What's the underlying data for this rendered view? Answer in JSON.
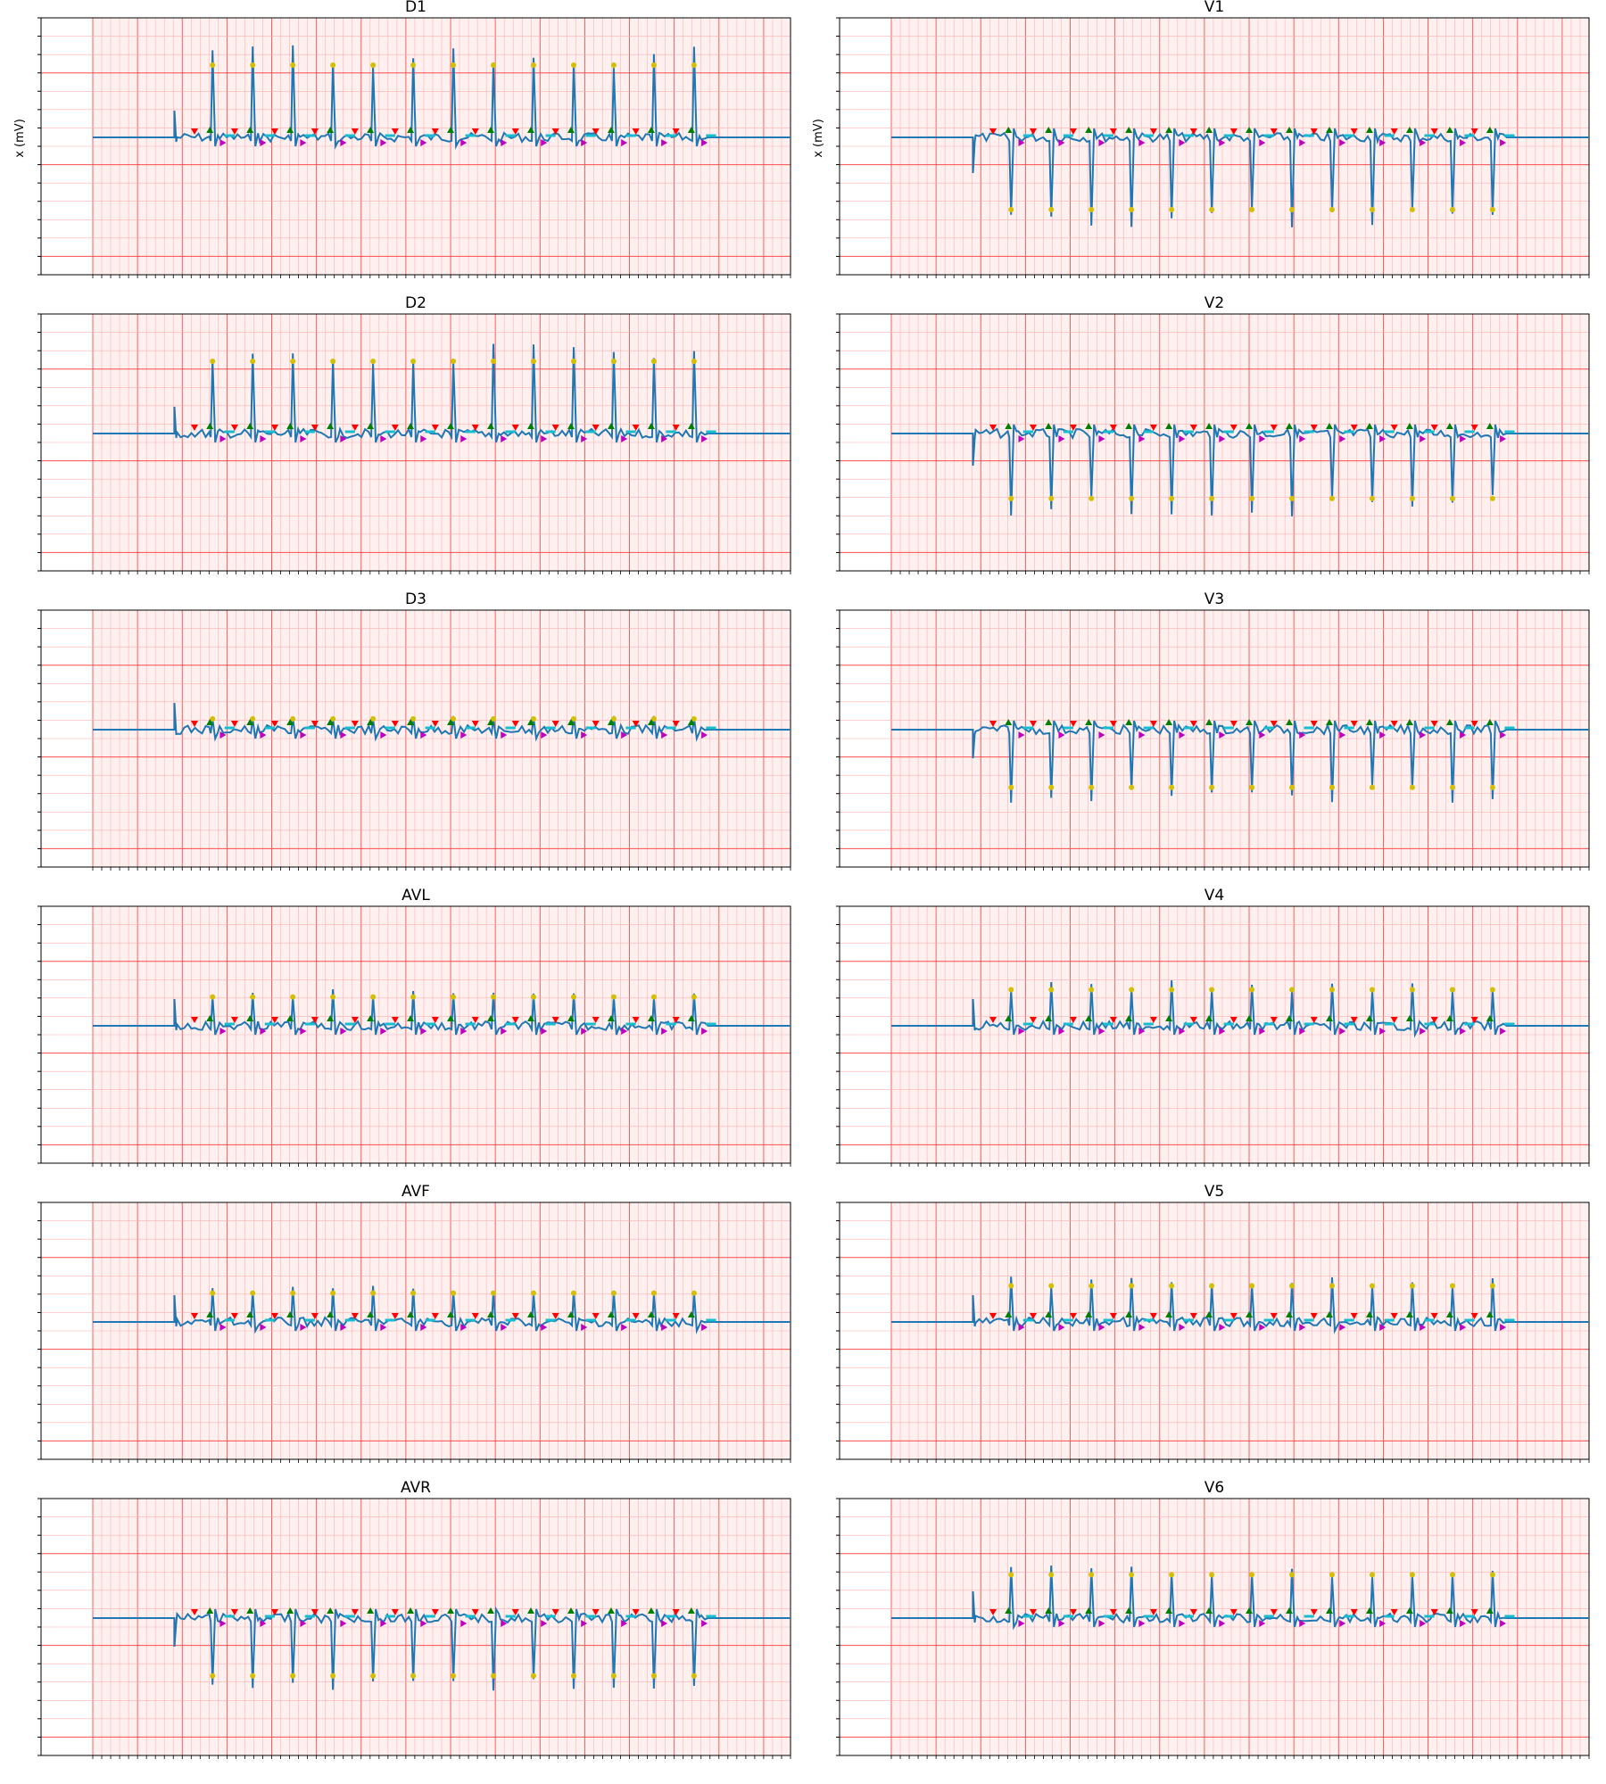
{
  "figure": {
    "ylabel": "x (mV)"
  },
  "chart_data": [
    {
      "type": "line",
      "title": "D1",
      "column": "left",
      "row": 0,
      "ylabel": "x (mV)",
      "series": [
        {
          "amplitude": 1.0,
          "polarity": "positive",
          "color": "#1f77b4"
        }
      ]
    },
    {
      "type": "line",
      "title": "V1",
      "column": "right",
      "row": 0,
      "ylabel": "x (mV)",
      "series": [
        {
          "amplitude": -1.0,
          "polarity": "negative",
          "color": "#1f77b4"
        }
      ]
    },
    {
      "type": "line",
      "title": "D2",
      "column": "left",
      "row": 1,
      "ylabel": "",
      "series": [
        {
          "amplitude": 1.0,
          "polarity": "positive",
          "color": "#1f77b4"
        }
      ]
    },
    {
      "type": "line",
      "title": "V2",
      "column": "right",
      "row": 1,
      "ylabel": "",
      "series": [
        {
          "amplitude": -0.9,
          "polarity": "negative",
          "color": "#1f77b4"
        }
      ]
    },
    {
      "type": "line",
      "title": "D3",
      "column": "left",
      "row": 2,
      "ylabel": "",
      "series": [
        {
          "amplitude": 0.15,
          "polarity": "small",
          "color": "#1f77b4"
        }
      ]
    },
    {
      "type": "line",
      "title": "V3",
      "column": "right",
      "row": 2,
      "ylabel": "",
      "series": [
        {
          "amplitude": -0.8,
          "polarity": "negative",
          "color": "#1f77b4"
        }
      ]
    },
    {
      "type": "line",
      "title": "AVL",
      "column": "left",
      "row": 3,
      "ylabel": "",
      "series": [
        {
          "amplitude": 0.4,
          "polarity": "positive",
          "color": "#1f77b4"
        }
      ]
    },
    {
      "type": "line",
      "title": "V4",
      "column": "right",
      "row": 3,
      "ylabel": "",
      "series": [
        {
          "amplitude": 0.5,
          "polarity": "biphasic",
          "color": "#1f77b4"
        }
      ]
    },
    {
      "type": "line",
      "title": "AVF",
      "column": "left",
      "row": 4,
      "ylabel": "",
      "series": [
        {
          "amplitude": 0.4,
          "polarity": "positive",
          "color": "#1f77b4"
        }
      ]
    },
    {
      "type": "line",
      "title": "V5",
      "column": "right",
      "row": 4,
      "ylabel": "",
      "series": [
        {
          "amplitude": 0.5,
          "polarity": "positive",
          "color": "#1f77b4"
        }
      ]
    },
    {
      "type": "line",
      "title": "AVR",
      "column": "left",
      "row": 5,
      "ylabel": "",
      "series": [
        {
          "amplitude": -0.8,
          "polarity": "negative",
          "color": "#1f77b4"
        }
      ]
    },
    {
      "type": "line",
      "title": "V6",
      "column": "right",
      "row": 5,
      "ylabel": "",
      "series": [
        {
          "amplitude": 0.6,
          "polarity": "positive",
          "color": "#1f77b4"
        }
      ]
    }
  ],
  "marker_colors": {
    "red": "#ff0000",
    "green": "#008000",
    "yellow": "#d4c000",
    "magenta": "#c000c0",
    "cyan": "#17becf",
    "trace": "#1f77b4",
    "grid_major": "#ff4d4d",
    "grid_minor": "#ffb0b0",
    "grid_bg": "#fff0f0"
  }
}
